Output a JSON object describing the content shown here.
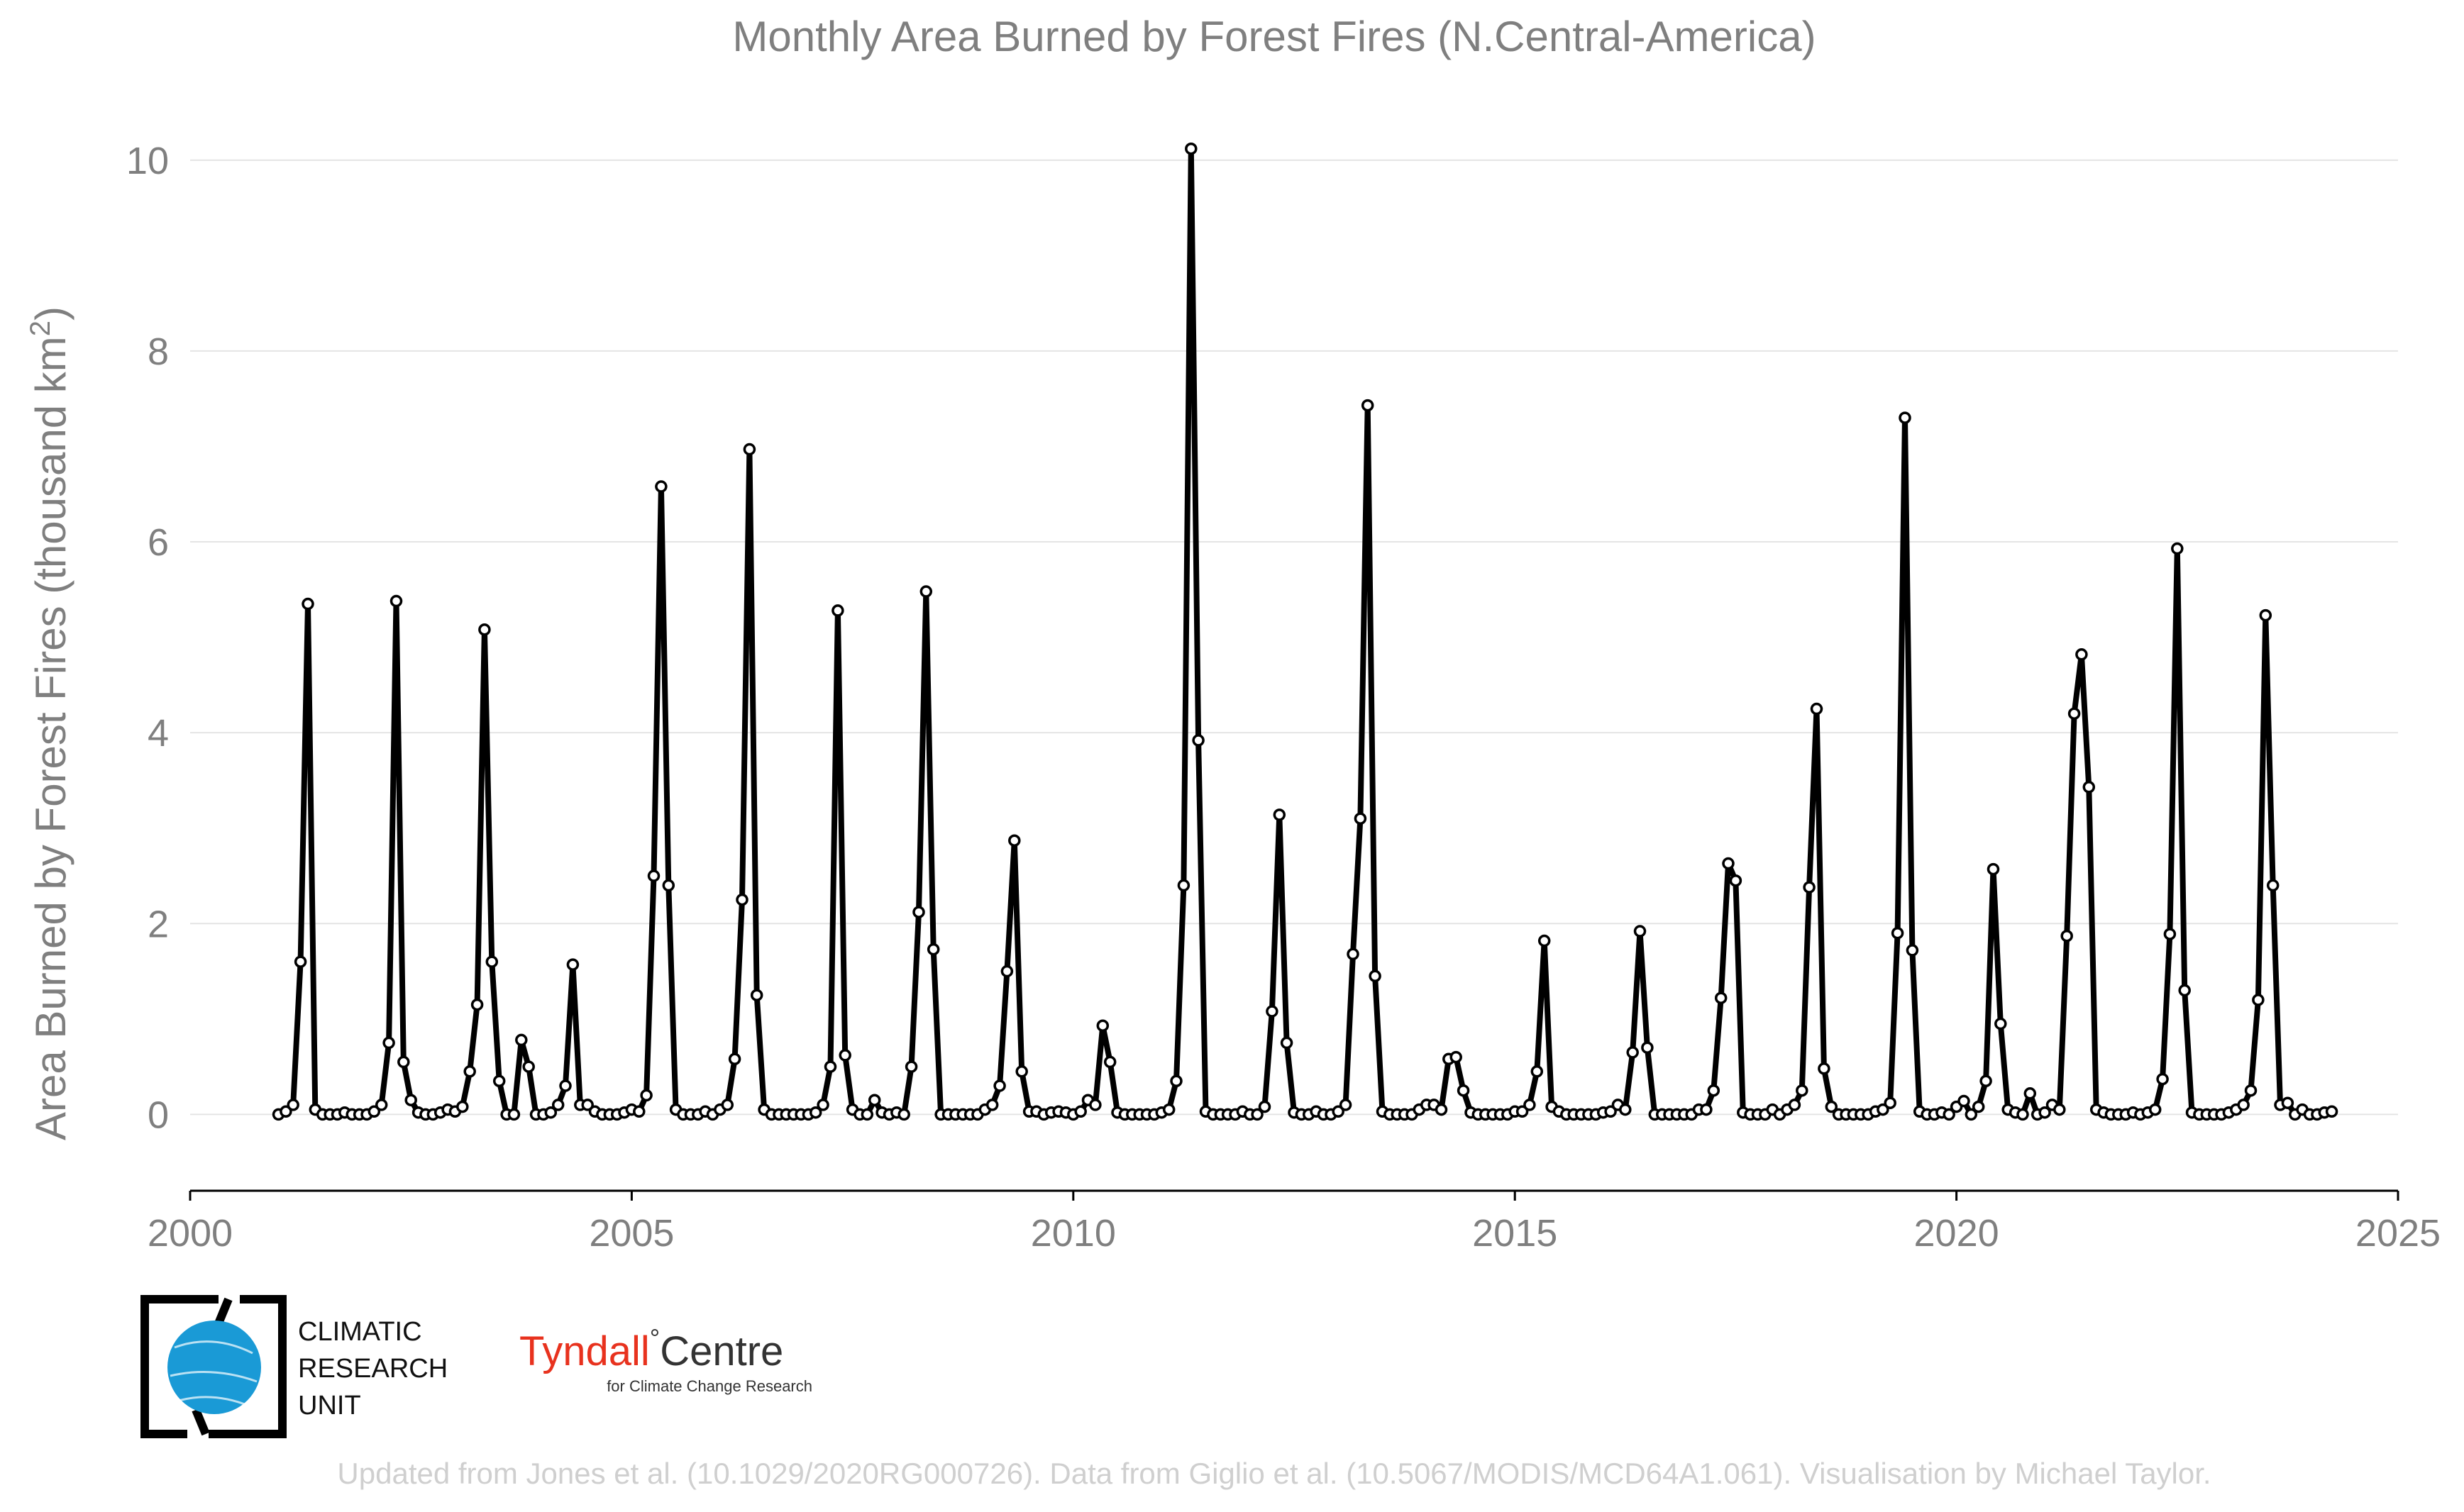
{
  "chart_data": {
    "type": "line",
    "title": "Monthly Area Burned by Forest Fires (N.Central-America)",
    "xlabel": "",
    "ylabel": "Area Burned by Forest Fires (thousand km",
    "ylabel_sup": "2",
    "ylabel_end": ")",
    "xlim": [
      2000,
      2025
    ],
    "ylim": [
      -0.8,
      10.4
    ],
    "xticks": [
      2000,
      2005,
      2010,
      2015,
      2020,
      2025
    ],
    "yticks": [
      0,
      2,
      4,
      6,
      8,
      10
    ],
    "grid": "horizontal",
    "legend": "none",
    "line_color": "#000000",
    "marker_fill": "#ffffff",
    "start": {
      "year": 2001,
      "month": 1
    },
    "series": [
      {
        "values": [
          0.0,
          0.03,
          0.1,
          1.6,
          5.35,
          0.05,
          0.0,
          0.0,
          0.0,
          0.02,
          0.0,
          0.0,
          0.0,
          0.03,
          0.1,
          0.75,
          5.38,
          0.55,
          0.15,
          0.02,
          0.0,
          0.0,
          0.02,
          0.05,
          0.03,
          0.08,
          0.45,
          1.15,
          5.08,
          1.6,
          0.35,
          0.0,
          0.0,
          0.78,
          0.5,
          0.0,
          0.0,
          0.02,
          0.1,
          0.3,
          1.57,
          0.1,
          0.1,
          0.03,
          0.0,
          0.0,
          0.0,
          0.02,
          0.05,
          0.03,
          0.2,
          2.5,
          6.58,
          2.4,
          0.05,
          0.0,
          0.0,
          0.0,
          0.03,
          0.0,
          0.05,
          0.1,
          0.58,
          2.25,
          6.97,
          1.25,
          0.05,
          0.0,
          0.0,
          0.0,
          0.0,
          0.0,
          0.0,
          0.02,
          0.1,
          0.5,
          5.28,
          0.62,
          0.05,
          0.0,
          0.0,
          0.15,
          0.02,
          0.0,
          0.02,
          0.0,
          0.5,
          2.12,
          5.48,
          1.73,
          0.0,
          0.0,
          0.0,
          0.0,
          0.0,
          0.0,
          0.05,
          0.1,
          0.3,
          1.5,
          2.87,
          0.45,
          0.03,
          0.03,
          0.0,
          0.02,
          0.03,
          0.02,
          0.0,
          0.03,
          0.15,
          0.1,
          0.93,
          0.55,
          0.02,
          0.0,
          0.0,
          0.0,
          0.0,
          0.0,
          0.02,
          0.05,
          0.35,
          2.4,
          10.12,
          3.92,
          0.03,
          0.0,
          0.0,
          0.0,
          0.0,
          0.03,
          0.0,
          0.0,
          0.08,
          1.08,
          3.14,
          0.75,
          0.02,
          0.0,
          0.0,
          0.03,
          0.0,
          0.0,
          0.03,
          0.1,
          1.68,
          3.1,
          7.43,
          1.45,
          0.03,
          0.0,
          0.0,
          0.0,
          0.0,
          0.05,
          0.1,
          0.1,
          0.05,
          0.58,
          0.6,
          0.25,
          0.02,
          0.0,
          0.0,
          0.0,
          0.0,
          0.0,
          0.03,
          0.03,
          0.1,
          0.45,
          1.82,
          0.08,
          0.03,
          0.0,
          0.0,
          0.0,
          0.0,
          0.0,
          0.02,
          0.03,
          0.1,
          0.05,
          0.65,
          1.92,
          0.7,
          0.0,
          0.0,
          0.0,
          0.0,
          0.0,
          0.0,
          0.05,
          0.05,
          0.25,
          1.22,
          2.63,
          2.45,
          0.02,
          0.0,
          0.0,
          0.0,
          0.05,
          0.0,
          0.05,
          0.1,
          0.25,
          2.38,
          4.25,
          0.48,
          0.08,
          0.0,
          0.0,
          0.0,
          0.0,
          0.0,
          0.03,
          0.05,
          0.12,
          1.9,
          7.3,
          1.72,
          0.03,
          0.0,
          0.0,
          0.02,
          0.0,
          0.08,
          0.14,
          0.0,
          0.08,
          0.35,
          2.57,
          0.95,
          0.05,
          0.02,
          0.0,
          0.22,
          0.0,
          0.02,
          0.1,
          0.05,
          1.87,
          4.2,
          4.82,
          3.43,
          0.05,
          0.02,
          0.0,
          0.0,
          0.0,
          0.02,
          0.0,
          0.02,
          0.05,
          0.37,
          1.89,
          5.93,
          1.3,
          0.02,
          0.0,
          0.0,
          0.0,
          0.0,
          0.02,
          0.05,
          0.1,
          0.25,
          1.2,
          5.23,
          2.4,
          0.1,
          0.12,
          0.0,
          0.05,
          0.0,
          0.0,
          0.02,
          0.03
        ]
      }
    ]
  },
  "credit": "Updated from Jones et al. (10.1029/2020RG000726). Data from Giglio et al. (10.5067/MODIS/MCD64A1.061). Visualisation by Michael Taylor.",
  "logos": {
    "cru_lines": [
      "CLIMATIC",
      "RESEARCH",
      "UNIT"
    ],
    "tyndall_main": "Tyndall",
    "tyndall_degree": "°",
    "tyndall_centre": "Centre",
    "tyndall_sub": "for Climate Change Research",
    "cru_globe_color": "#1a9ad6",
    "tyndall_color": "#e8321e"
  }
}
